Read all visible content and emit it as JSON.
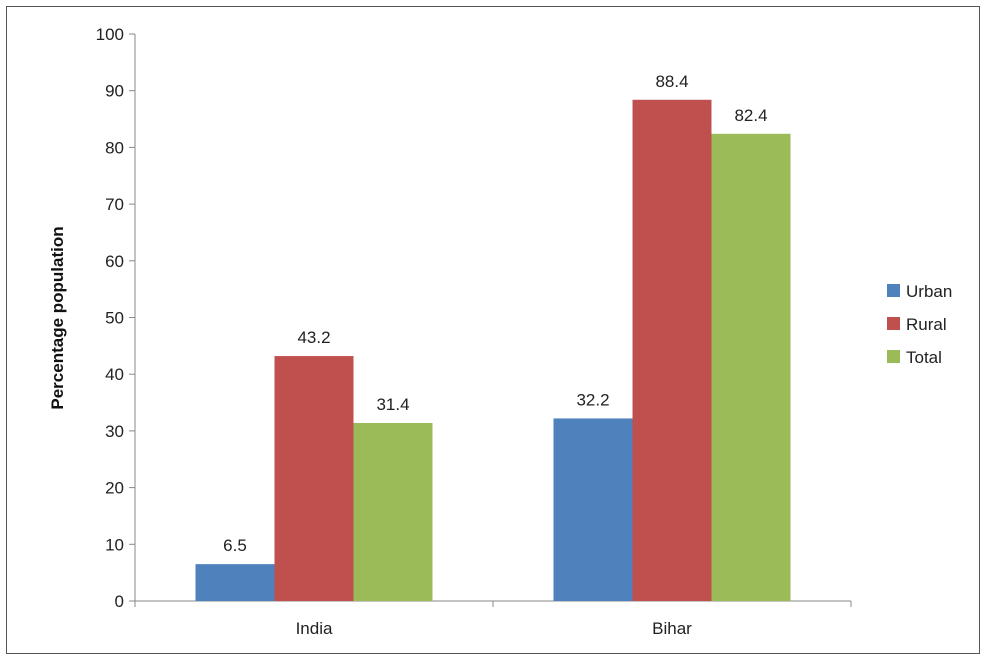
{
  "chart_data": {
    "type": "bar",
    "title": "",
    "xlabel": "",
    "ylabel": "Percentage population",
    "categories": [
      "India",
      "Bihar"
    ],
    "series": [
      {
        "name": "Urban",
        "values": [
          6.5,
          32.2
        ],
        "color": "#4F81BD"
      },
      {
        "name": "Rural",
        "values": [
          43.2,
          88.4
        ],
        "color": "#C0504D"
      },
      {
        "name": "Total",
        "values": [
          31.4,
          82.4
        ],
        "color": "#9BBB59"
      }
    ],
    "ylim": [
      0,
      100
    ],
    "yticks": [
      0,
      10,
      20,
      30,
      40,
      50,
      60,
      70,
      80,
      90,
      100
    ],
    "grid": false,
    "legend_position": "right"
  }
}
